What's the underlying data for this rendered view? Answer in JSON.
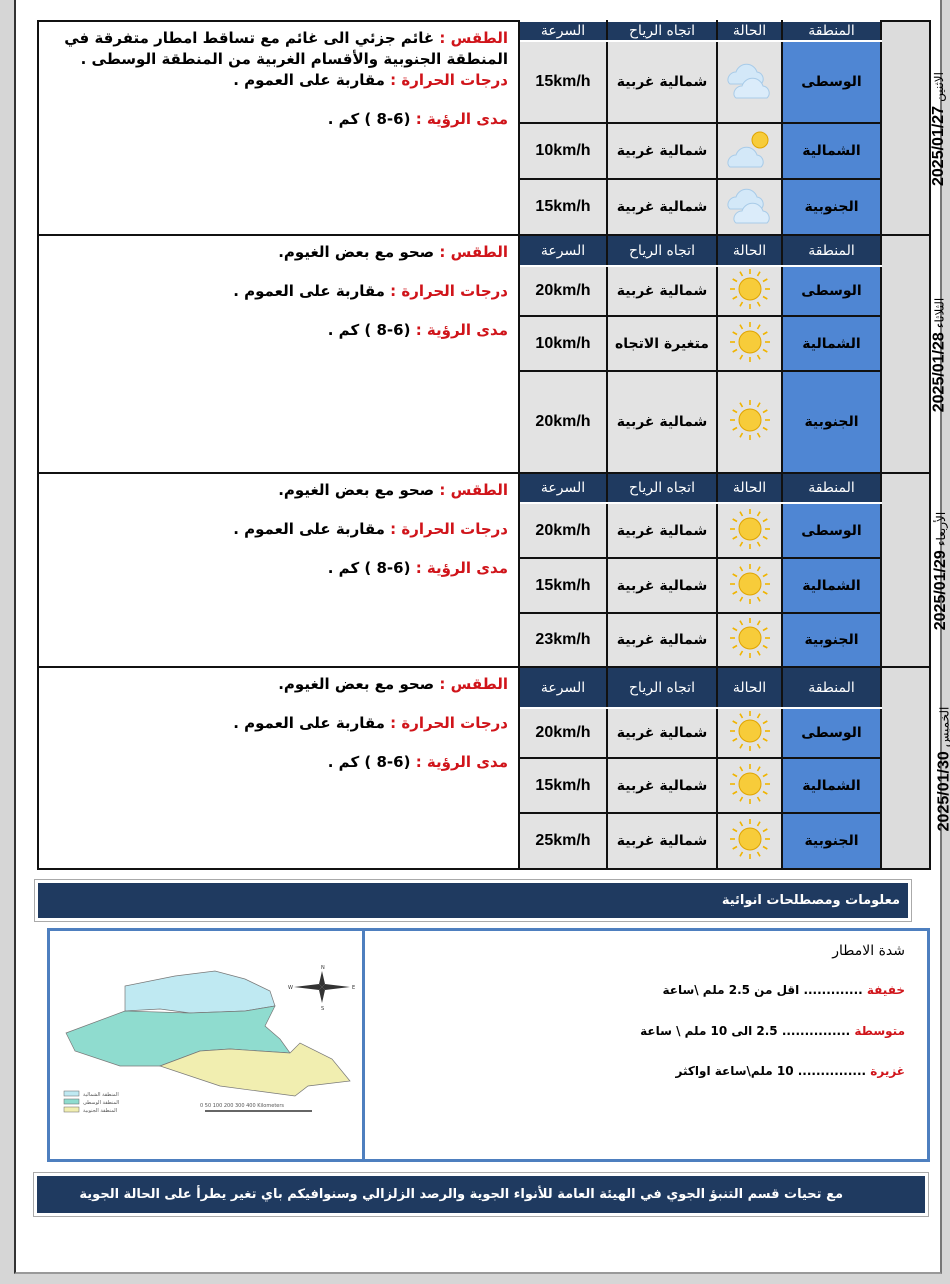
{
  "headers": {
    "region": "المنطقة",
    "status": "الحالة",
    "direction": "اتجاه الرياح",
    "speed": "السرعة"
  },
  "days": [
    {
      "weekday": "الاثنين",
      "date": "2025/01/27",
      "weather_label": "الطقس :",
      "weather": "غائم جزئي الى غائم  مع تساقط امطار متفرقة في المنطقة الجنوبية والأقسام الغربية من المنطقة الوسطى .",
      "temp_label": "درجات الحرارة :",
      "temp": "مقاربة على العموم .",
      "vis_label": "مدى الرؤية :",
      "vis": "(6-8 ) كم .",
      "rows": [
        {
          "region": "الوسطى",
          "icon": "cloudy-icon",
          "direction": "شمالية غربية",
          "speed": "15km/h"
        },
        {
          "region": "الشمالية",
          "icon": "partly-cloudy-icon",
          "direction": "شمالية غربية",
          "speed": "10km/h"
        },
        {
          "region": "الجنوبية",
          "icon": "cloudy-icon",
          "direction": "شمالية غربية",
          "speed": "15km/h"
        }
      ]
    },
    {
      "weekday": "الثلاثاء",
      "date": "2025/01/28",
      "weather_label": "الطقس :",
      "weather": "صحو مع بعض الغيوم.",
      "temp_label": "درجات الحرارة :",
      "temp": "مقاربة على العموم .",
      "vis_label": "مدى الرؤية :",
      "vis": "(6-8 ) كم .",
      "rows": [
        {
          "region": "الوسطى",
          "icon": "sun-icon",
          "direction": "شمالية غربية",
          "speed": "20km/h"
        },
        {
          "region": "الشمالية",
          "icon": "sun-icon",
          "direction": "متغيرة الاتجاه",
          "speed": "10km/h"
        },
        {
          "region": "الجنوبية",
          "icon": "sun-icon",
          "direction": "شمالية غربية",
          "speed": "20km/h"
        }
      ]
    },
    {
      "weekday": "الأربعاء",
      "date": "2025/01/29",
      "weather_label": "الطقس :",
      "weather": "صحو مع بعض الغيوم.",
      "temp_label": "درجات الحرارة :",
      "temp": "مقاربة على العموم .",
      "vis_label": "مدى الرؤية :",
      "vis": "(6-8 ) كم .",
      "rows": [
        {
          "region": "الوسطى",
          "icon": "sun-icon",
          "direction": "شمالية غربية",
          "speed": "20km/h"
        },
        {
          "region": "الشمالية",
          "icon": "sun-icon",
          "direction": "شمالية غربية",
          "speed": "15km/h"
        },
        {
          "region": "الجنوبية",
          "icon": "sun-icon",
          "direction": "شمالية غربية",
          "speed": "23km/h"
        }
      ]
    },
    {
      "weekday": "الخميس",
      "date": "2025/01/30",
      "weather_label": "الطقس :",
      "weather": "صحو مع بعض الغيوم.",
      "temp_label": "درجات الحرارة :",
      "temp": "مقاربة  على العموم .",
      "vis_label": "مدى الرؤية :",
      "vis": "(6-8 ) كم .",
      "rows": [
        {
          "region": "الوسطى",
          "icon": "sun-icon",
          "direction": "شمالية غربية",
          "speed": "20km/h"
        },
        {
          "region": "الشمالية",
          "icon": "sun-icon",
          "direction": "شمالية غربية",
          "speed": "15km/h"
        },
        {
          "region": "الجنوبية",
          "icon": "sun-icon",
          "direction": "شمالية غربية",
          "speed": "25km/h"
        }
      ]
    }
  ],
  "info": {
    "title": "معلومات ومصطلحات انوائية",
    "rain_title": "شدة الامطار",
    "rain": [
      {
        "label": "خفيفة",
        "text": " ............. اقل من 2.5  ملم \\ساعة"
      },
      {
        "label": "متوسطة",
        "text": " ............... 2.5 الى 10 ملم \\ ساعة"
      },
      {
        "label": "غزيرة",
        "text": " ............... 10 ملم\\ساعة اواكثر"
      }
    ],
    "map_legend": [
      "المنطقة الشمالية",
      "المنطقة الوسطى",
      "المنطقة الجنوبية"
    ],
    "map_scale": "0  50 100    200    300    400 Kilometers",
    "compass": {
      "n": "N",
      "s": "S",
      "e": "E",
      "w": "W"
    }
  },
  "footer": "مع تحيات قسم التنبؤ الجوي في الهيئة العامة للأنواء الجوية والرصد الزلزالي وسنوافيكم  باي تغير يطرأ على الحالة الجوية",
  "colors": {
    "header": "#1f3a60",
    "region": "#4f86d3",
    "label": "#d0141a"
  }
}
